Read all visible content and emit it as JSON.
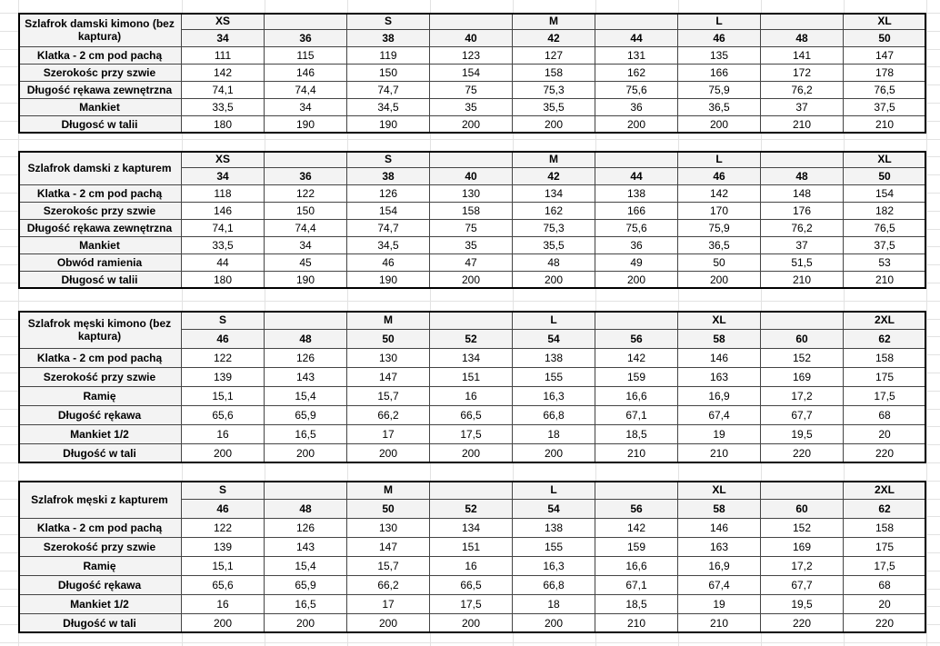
{
  "tables": [
    {
      "title": "Szlafrok damski kimono (bez kaptura)",
      "sizes": [
        "XS",
        null,
        "S",
        null,
        "M",
        null,
        "L",
        null,
        "XL"
      ],
      "numbers": [
        "34",
        "36",
        "38",
        "40",
        "42",
        "44",
        "46",
        "48",
        "50"
      ],
      "rows": [
        {
          "label": "Klatka - 2 cm pod pachą",
          "values": [
            "111",
            "115",
            "119",
            "123",
            "127",
            "131",
            "135",
            "141",
            "147"
          ]
        },
        {
          "label": "Szerokośc przy szwie",
          "values": [
            "142",
            "146",
            "150",
            "154",
            "158",
            "162",
            "166",
            "172",
            "178"
          ]
        },
        {
          "label": "Długość rękawa zewnętrzna",
          "values": [
            "74,1",
            "74,4",
            "74,7",
            "75",
            "75,3",
            "75,6",
            "75,9",
            "76,2",
            "76,5"
          ]
        },
        {
          "label": "Mankiet",
          "values": [
            "33,5",
            "34",
            "34,5",
            "35",
            "35,5",
            "36",
            "36,5",
            "37",
            "37,5"
          ]
        },
        {
          "label": "Długosć w talii",
          "values": [
            "180",
            "190",
            "190",
            "200",
            "200",
            "200",
            "200",
            "210",
            "210"
          ]
        }
      ]
    },
    {
      "title": "Szlafrok damski z kapturem",
      "sizes": [
        "XS",
        null,
        "S",
        null,
        "M",
        null,
        "L",
        null,
        "XL"
      ],
      "numbers": [
        "34",
        "36",
        "38",
        "40",
        "42",
        "44",
        "46",
        "48",
        "50"
      ],
      "rows": [
        {
          "label": "Klatka - 2 cm pod pachą",
          "values": [
            "118",
            "122",
            "126",
            "130",
            "134",
            "138",
            "142",
            "148",
            "154"
          ]
        },
        {
          "label": "Szerokośc przy szwie",
          "values": [
            "146",
            "150",
            "154",
            "158",
            "162",
            "166",
            "170",
            "176",
            "182"
          ]
        },
        {
          "label": "Długość rękawa zewnętrzna",
          "values": [
            "74,1",
            "74,4",
            "74,7",
            "75",
            "75,3",
            "75,6",
            "75,9",
            "76,2",
            "76,5"
          ]
        },
        {
          "label": "Mankiet",
          "values": [
            "33,5",
            "34",
            "34,5",
            "35",
            "35,5",
            "36",
            "36,5",
            "37",
            "37,5"
          ]
        },
        {
          "label": "Obwód ramienia",
          "values": [
            "44",
            "45",
            "46",
            "47",
            "48",
            "49",
            "50",
            "51,5",
            "53"
          ]
        },
        {
          "label": "Długosć w talii",
          "values": [
            "180",
            "190",
            "190",
            "200",
            "200",
            "200",
            "200",
            "210",
            "210"
          ]
        }
      ]
    },
    {
      "title": "Szlafrok męski kimono (bez kaptura)",
      "sizes": [
        "S",
        null,
        "M",
        null,
        "L",
        null,
        "XL",
        null,
        "2XL"
      ],
      "numbers": [
        "46",
        "48",
        "50",
        "52",
        "54",
        "56",
        "58",
        "60",
        "62"
      ],
      "rows": [
        {
          "label": "Klatka - 2 cm pod pachą",
          "values": [
            "122",
            "126",
            "130",
            "134",
            "138",
            "142",
            "146",
            "152",
            "158"
          ]
        },
        {
          "label": "Szerokość przy szwie",
          "values": [
            "139",
            "143",
            "147",
            "151",
            "155",
            "159",
            "163",
            "169",
            "175"
          ]
        },
        {
          "label": "Ramię",
          "values": [
            "15,1",
            "15,4",
            "15,7",
            "16",
            "16,3",
            "16,6",
            "16,9",
            "17,2",
            "17,5"
          ]
        },
        {
          "label": "Długość rękawa",
          "values": [
            "65,6",
            "65,9",
            "66,2",
            "66,5",
            "66,8",
            "67,1",
            "67,4",
            "67,7",
            "68"
          ]
        },
        {
          "label": "Mankiet 1/2",
          "values": [
            "16",
            "16,5",
            "17",
            "17,5",
            "18",
            "18,5",
            "19",
            "19,5",
            "20"
          ]
        },
        {
          "label": "Długość w tali",
          "values": [
            "200",
            "200",
            "200",
            "200",
            "200",
            "210",
            "210",
            "220",
            "220"
          ]
        }
      ]
    },
    {
      "title": "Szlafrok męski z kapturem",
      "sizes": [
        "S",
        null,
        "M",
        null,
        "L",
        null,
        "XL",
        null,
        "2XL"
      ],
      "numbers": [
        "46",
        "48",
        "50",
        "52",
        "54",
        "56",
        "58",
        "60",
        "62"
      ],
      "rows": [
        {
          "label": "Klatka - 2 cm pod pachą",
          "values": [
            "122",
            "126",
            "130",
            "134",
            "138",
            "142",
            "146",
            "152",
            "158"
          ]
        },
        {
          "label": "Szerokość przy szwie",
          "values": [
            "139",
            "143",
            "147",
            "151",
            "155",
            "159",
            "163",
            "169",
            "175"
          ]
        },
        {
          "label": "Ramię",
          "values": [
            "15,1",
            "15,4",
            "15,7",
            "16",
            "16,3",
            "16,6",
            "16,9",
            "17,2",
            "17,5"
          ]
        },
        {
          "label": "Długość rękawa",
          "values": [
            "65,6",
            "65,9",
            "66,2",
            "66,5",
            "66,8",
            "67,1",
            "67,4",
            "67,7",
            "68"
          ]
        },
        {
          "label": "Mankiet 1/2",
          "values": [
            "16",
            "16,5",
            "17",
            "17,5",
            "18",
            "18,5",
            "19",
            "19,5",
            "20"
          ]
        },
        {
          "label": "Długość w tali",
          "values": [
            "200",
            "200",
            "200",
            "200",
            "200",
            "210",
            "210",
            "220",
            "220"
          ]
        }
      ]
    }
  ]
}
